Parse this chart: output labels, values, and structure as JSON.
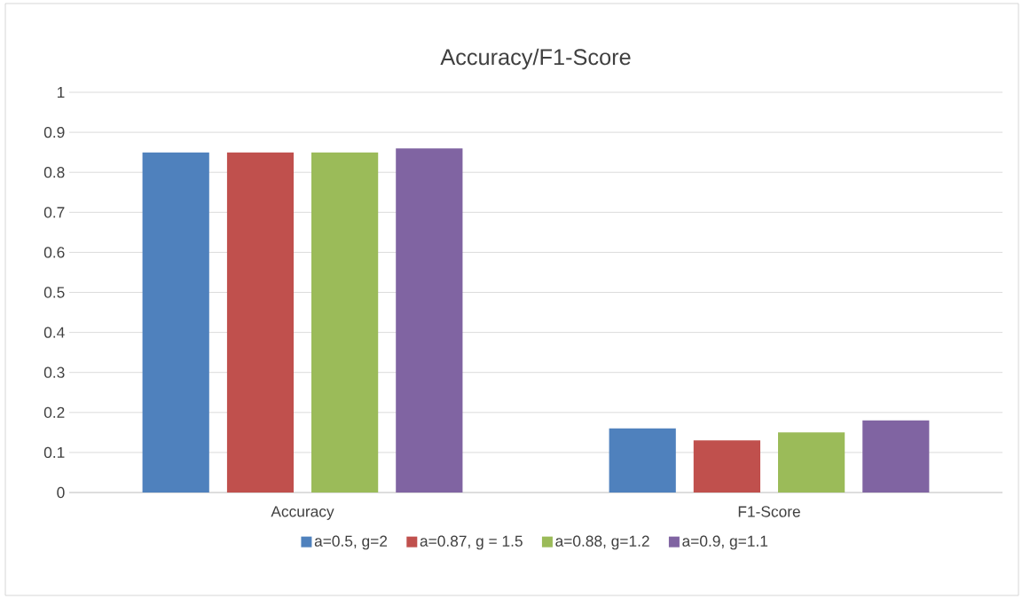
{
  "chart_data": {
    "type": "bar",
    "title": "Accuracy/F1-Score",
    "categories": [
      "Accuracy",
      "F1-Score"
    ],
    "series": [
      {
        "name": "a=0.5, g=2",
        "color": "#4f81bd",
        "values": [
          0.85,
          0.16
        ]
      },
      {
        "name": "a=0.87, g = 1.5",
        "color": "#c0504d",
        "values": [
          0.85,
          0.13
        ]
      },
      {
        "name": "a=0.88, g=1.2",
        "color": "#9bbb59",
        "values": [
          0.85,
          0.15
        ]
      },
      {
        "name": "a=0.9, g=1.1",
        "color": "#8064a2",
        "values": [
          0.86,
          0.18
        ]
      }
    ],
    "ylim": [
      0,
      1
    ],
    "yticks": [
      0,
      0.1,
      0.2,
      0.3,
      0.4,
      0.5,
      0.6,
      0.7,
      0.8,
      0.9,
      1
    ],
    "grid": "y",
    "legend": "bottom"
  }
}
